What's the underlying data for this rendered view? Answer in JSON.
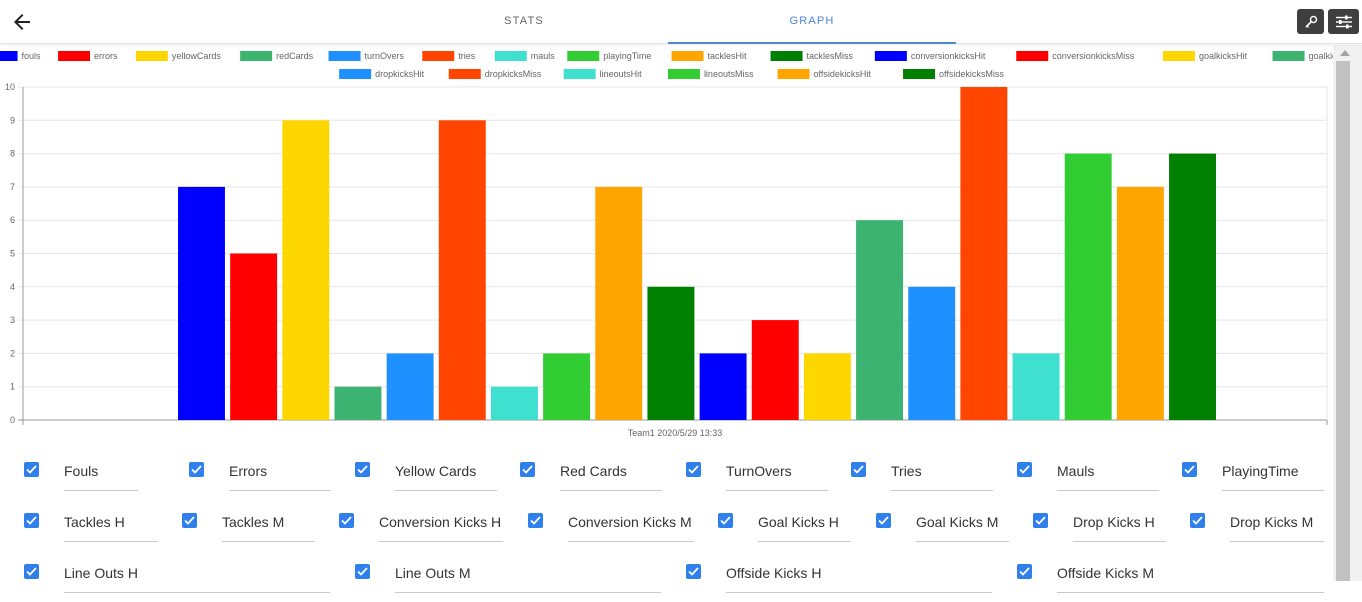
{
  "header": {
    "tabs": [
      {
        "label": "STATS",
        "active": false
      },
      {
        "label": "GRAPH",
        "active": true
      }
    ],
    "icons": [
      "back-arrow-icon",
      "wrench-icon",
      "sliders-icon"
    ]
  },
  "chart_data": {
    "type": "bar",
    "categories": [
      "Team1 2020/5/29 13:33"
    ],
    "xlabel": "",
    "ylabel": "",
    "ylim": [
      0,
      10
    ],
    "yticks": [
      "0",
      "1",
      "2",
      "3",
      "4",
      "5",
      "6",
      "7",
      "8",
      "9",
      "10"
    ],
    "grid": true,
    "legend_position": "top",
    "series": [
      {
        "name": "fouls",
        "values": [
          7
        ],
        "color": "#0000ff"
      },
      {
        "name": "errors",
        "values": [
          5
        ],
        "color": "#ff0000"
      },
      {
        "name": "yellowCards",
        "values": [
          9
        ],
        "color": "#ffd700"
      },
      {
        "name": "redCards",
        "values": [
          1
        ],
        "color": "#3cb371"
      },
      {
        "name": "turnOvers",
        "values": [
          2
        ],
        "color": "#1e90ff"
      },
      {
        "name": "tries",
        "values": [
          9
        ],
        "color": "#ff4500"
      },
      {
        "name": "mauls",
        "values": [
          1
        ],
        "color": "#40e0d0"
      },
      {
        "name": "playingTime",
        "values": [
          2
        ],
        "color": "#32cd32"
      },
      {
        "name": "tacklesHit",
        "values": [
          7
        ],
        "color": "#ffa500"
      },
      {
        "name": "tacklesMiss",
        "values": [
          4
        ],
        "color": "#008000"
      },
      {
        "name": "conversionkicksHit",
        "values": [
          2
        ],
        "color": "#0000ff"
      },
      {
        "name": "conversionkicksMiss",
        "values": [
          3
        ],
        "color": "#ff0000"
      },
      {
        "name": "goalkicksHit",
        "values": [
          2
        ],
        "color": "#ffd700"
      },
      {
        "name": "goalkicksMiss",
        "values": [
          6
        ],
        "color": "#3cb371"
      },
      {
        "name": "dropkicksHit",
        "values": [
          4
        ],
        "color": "#1e90ff"
      },
      {
        "name": "dropkicksMiss",
        "values": [
          10
        ],
        "color": "#ff4500"
      },
      {
        "name": "lineoutsHit",
        "values": [
          2
        ],
        "color": "#40e0d0"
      },
      {
        "name": "lineoutsMiss",
        "values": [
          8
        ],
        "color": "#32cd32"
      },
      {
        "name": "offsidekicksHit",
        "values": [
          7
        ],
        "color": "#ffa500"
      },
      {
        "name": "offsidekicksMiss",
        "values": [
          8
        ],
        "color": "#008000"
      }
    ]
  },
  "checkbox_rows": [
    [
      {
        "label": "Fouls",
        "checked": true
      },
      {
        "label": "Errors",
        "checked": true
      },
      {
        "label": "Yellow Cards",
        "checked": true
      },
      {
        "label": "Red Cards",
        "checked": true
      },
      {
        "label": "TurnOvers",
        "checked": true
      },
      {
        "label": "Tries",
        "checked": true
      },
      {
        "label": "Mauls",
        "checked": true
      },
      {
        "label": "PlayingTime",
        "checked": true
      }
    ],
    [
      {
        "label": "Tackles H",
        "checked": true
      },
      {
        "label": "Tackles M",
        "checked": true
      },
      {
        "label": "Conversion Kicks H",
        "checked": true
      },
      {
        "label": "Conversion Kicks M",
        "checked": true
      },
      {
        "label": "Goal Kicks H",
        "checked": true
      },
      {
        "label": "Goal Kicks M",
        "checked": true
      },
      {
        "label": "Drop Kicks H",
        "checked": true
      },
      {
        "label": "Drop Kicks M",
        "checked": true
      }
    ],
    [
      {
        "label": "Line Outs H",
        "checked": true
      },
      {
        "label": "Line Outs M",
        "checked": true
      },
      {
        "label": "Offside Kicks H",
        "checked": true
      },
      {
        "label": "Offside Kicks M",
        "checked": true
      }
    ]
  ]
}
